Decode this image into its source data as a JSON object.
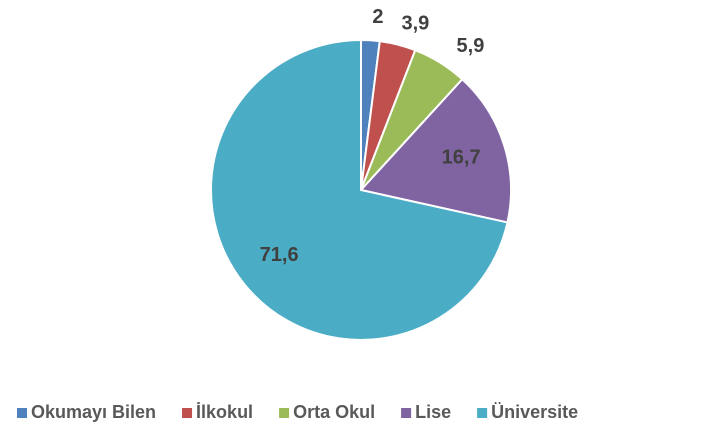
{
  "chart_data": {
    "type": "pie",
    "categories": [
      "Okumayı Bilen",
      "İlkokul",
      "Orta Okul",
      "Lise",
      "Üniversite"
    ],
    "values": [
      2,
      3.9,
      5.9,
      16.7,
      71.6
    ],
    "value_labels": [
      "2",
      "3,9",
      "5,9",
      "16,7",
      "71,6"
    ],
    "colors": [
      "#4f81bd",
      "#c0504d",
      "#9bbb59",
      "#8064a2",
      "#4bacc6"
    ],
    "legend": "bottom"
  }
}
